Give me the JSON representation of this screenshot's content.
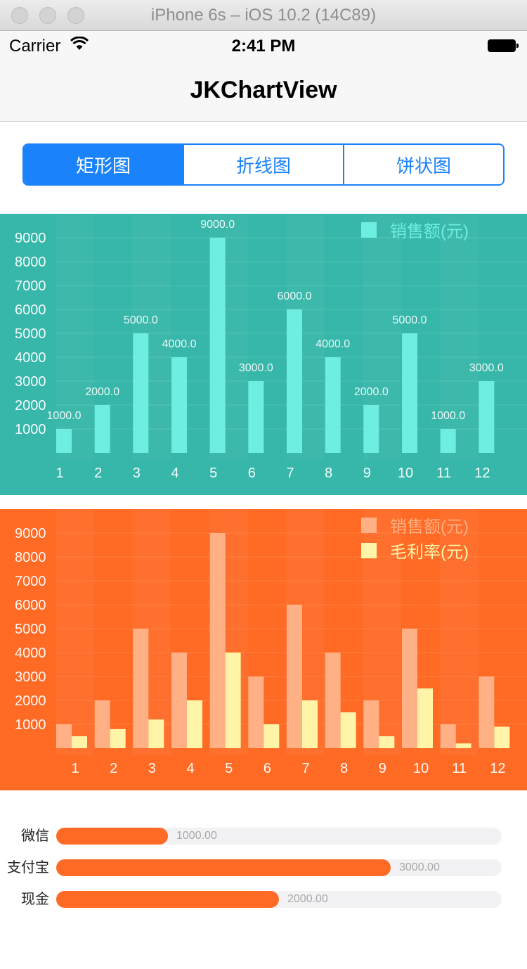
{
  "window": {
    "title": "iPhone 6s – iOS 10.2 (14C89)"
  },
  "status_bar": {
    "carrier": "Carrier",
    "time": "2:41 PM"
  },
  "nav": {
    "title": "JKChartView"
  },
  "segments": {
    "items": [
      "矩形图",
      "折线图",
      "饼状图"
    ],
    "selected": "矩形图"
  },
  "colors": {
    "accent": "#1a82fb",
    "chart1_bg": "#36b7a9",
    "chart1_bar": "#6eeee0",
    "chart2_bg": "#ff6a25",
    "chart2_sales": "#ffb185",
    "chart2_margin": "#fff4a8",
    "progress": "#ff6a25"
  },
  "chart_data": [
    {
      "type": "bar",
      "categories": [
        "1",
        "2",
        "3",
        "4",
        "5",
        "6",
        "7",
        "8",
        "9",
        "10",
        "11",
        "12"
      ],
      "yticks": [
        "1000",
        "2000",
        "3000",
        "4000",
        "5000",
        "6000",
        "7000",
        "8000",
        "9000"
      ],
      "ylim": [
        0,
        9000
      ],
      "series": [
        {
          "name": "销售额(元)",
          "values": [
            1000,
            2000,
            5000,
            4000,
            9000,
            3000,
            6000,
            4000,
            2000,
            5000,
            1000,
            3000
          ],
          "data_labels": [
            "1000.0",
            "2000.0",
            "5000.0",
            "4000.0",
            "9000.0",
            "3000.0",
            "6000.0",
            "4000.0",
            "2000.0",
            "5000.0",
            "1000.0",
            "3000.0"
          ]
        }
      ],
      "legend": "top-right",
      "grid": true
    },
    {
      "type": "bar",
      "categories": [
        "1",
        "2",
        "3",
        "4",
        "5",
        "6",
        "7",
        "8",
        "9",
        "10",
        "11",
        "12"
      ],
      "yticks": [
        "1000",
        "2000",
        "3000",
        "4000",
        "5000",
        "6000",
        "7000",
        "8000",
        "9000"
      ],
      "ylim": [
        0,
        9000
      ],
      "series": [
        {
          "name": "销售额(元)",
          "values": [
            1000,
            2000,
            5000,
            4000,
            9000,
            3000,
            6000,
            4000,
            2000,
            5000,
            1000,
            3000
          ]
        },
        {
          "name": "毛利率(元)",
          "values": [
            500,
            800,
            1200,
            2000,
            4000,
            1000,
            2000,
            1500,
            500,
            2500,
            200,
            900
          ]
        }
      ],
      "legend": "top-right",
      "grid": true
    }
  ],
  "progress_list": {
    "max": 4000,
    "items": [
      {
        "label": "微信",
        "value": 1000,
        "value_text": "1000.00"
      },
      {
        "label": "支付宝",
        "value": 3000,
        "value_text": "3000.00"
      },
      {
        "label": "现金",
        "value": 2000,
        "value_text": "2000.00"
      }
    ]
  }
}
